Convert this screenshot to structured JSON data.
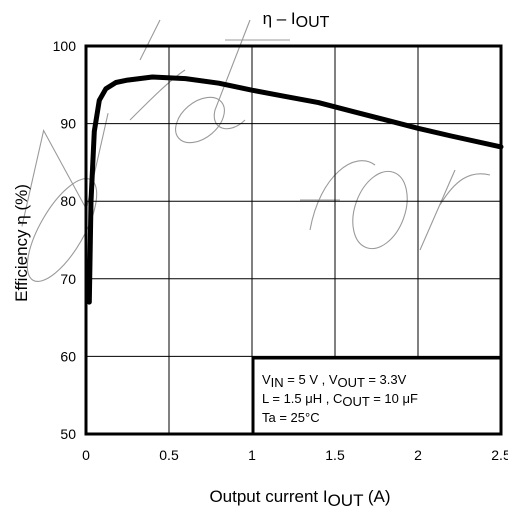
{
  "chart_data": {
    "type": "line",
    "title": "η – IOUT",
    "title_parts": {
      "main": "η – I",
      "sub": "OUT"
    },
    "xlabel": "Output current  IOUT   (A)",
    "xlabel_parts": {
      "pre": "Output current  I",
      "sub": "OUT",
      "post": "  (A)"
    },
    "ylabel": "Efficiency  η   (%)",
    "xlim": [
      0,
      2.5
    ],
    "ylim": [
      50,
      100
    ],
    "xticks": [
      0,
      0.5,
      1,
      1.5,
      2,
      2.5
    ],
    "xtick_labels": [
      "0",
      "0.5",
      "1",
      "1.5",
      "2",
      "2.5"
    ],
    "yticks": [
      50,
      60,
      70,
      80,
      90,
      100
    ],
    "ytick_labels": [
      "50",
      "60",
      "70",
      "80",
      "90",
      "100"
    ],
    "grid": true,
    "series": [
      {
        "x": [
          0.02,
          0.03,
          0.05,
          0.08,
          0.12,
          0.18,
          0.25,
          0.4,
          0.6,
          0.8,
          1.0,
          1.2,
          1.4,
          1.6,
          1.8,
          2.0,
          2.2,
          2.5
        ],
        "y": [
          67,
          80,
          89,
          93,
          94.5,
          95.3,
          95.6,
          96,
          95.8,
          95.2,
          94.3,
          93.5,
          92.7,
          91.6,
          90.5,
          89.4,
          88.4,
          87.0
        ]
      }
    ],
    "annotation": {
      "lines": [
        [
          {
            "t": "V"
          },
          {
            "t": "IN",
            "sub": true
          },
          {
            "t": " = 5 V , V"
          },
          {
            "t": "OUT",
            "sub": true
          },
          {
            "t": " = 3.3V"
          }
        ],
        [
          {
            "t": "L = 1.5 μH , C"
          },
          {
            "t": "OUT",
            "sub": true
          },
          {
            "t": " = 10 μF"
          }
        ],
        [
          {
            "t": "Ta = 25°C"
          }
        ]
      ],
      "placement": "bottom-right"
    },
    "watermark": "Not for"
  }
}
